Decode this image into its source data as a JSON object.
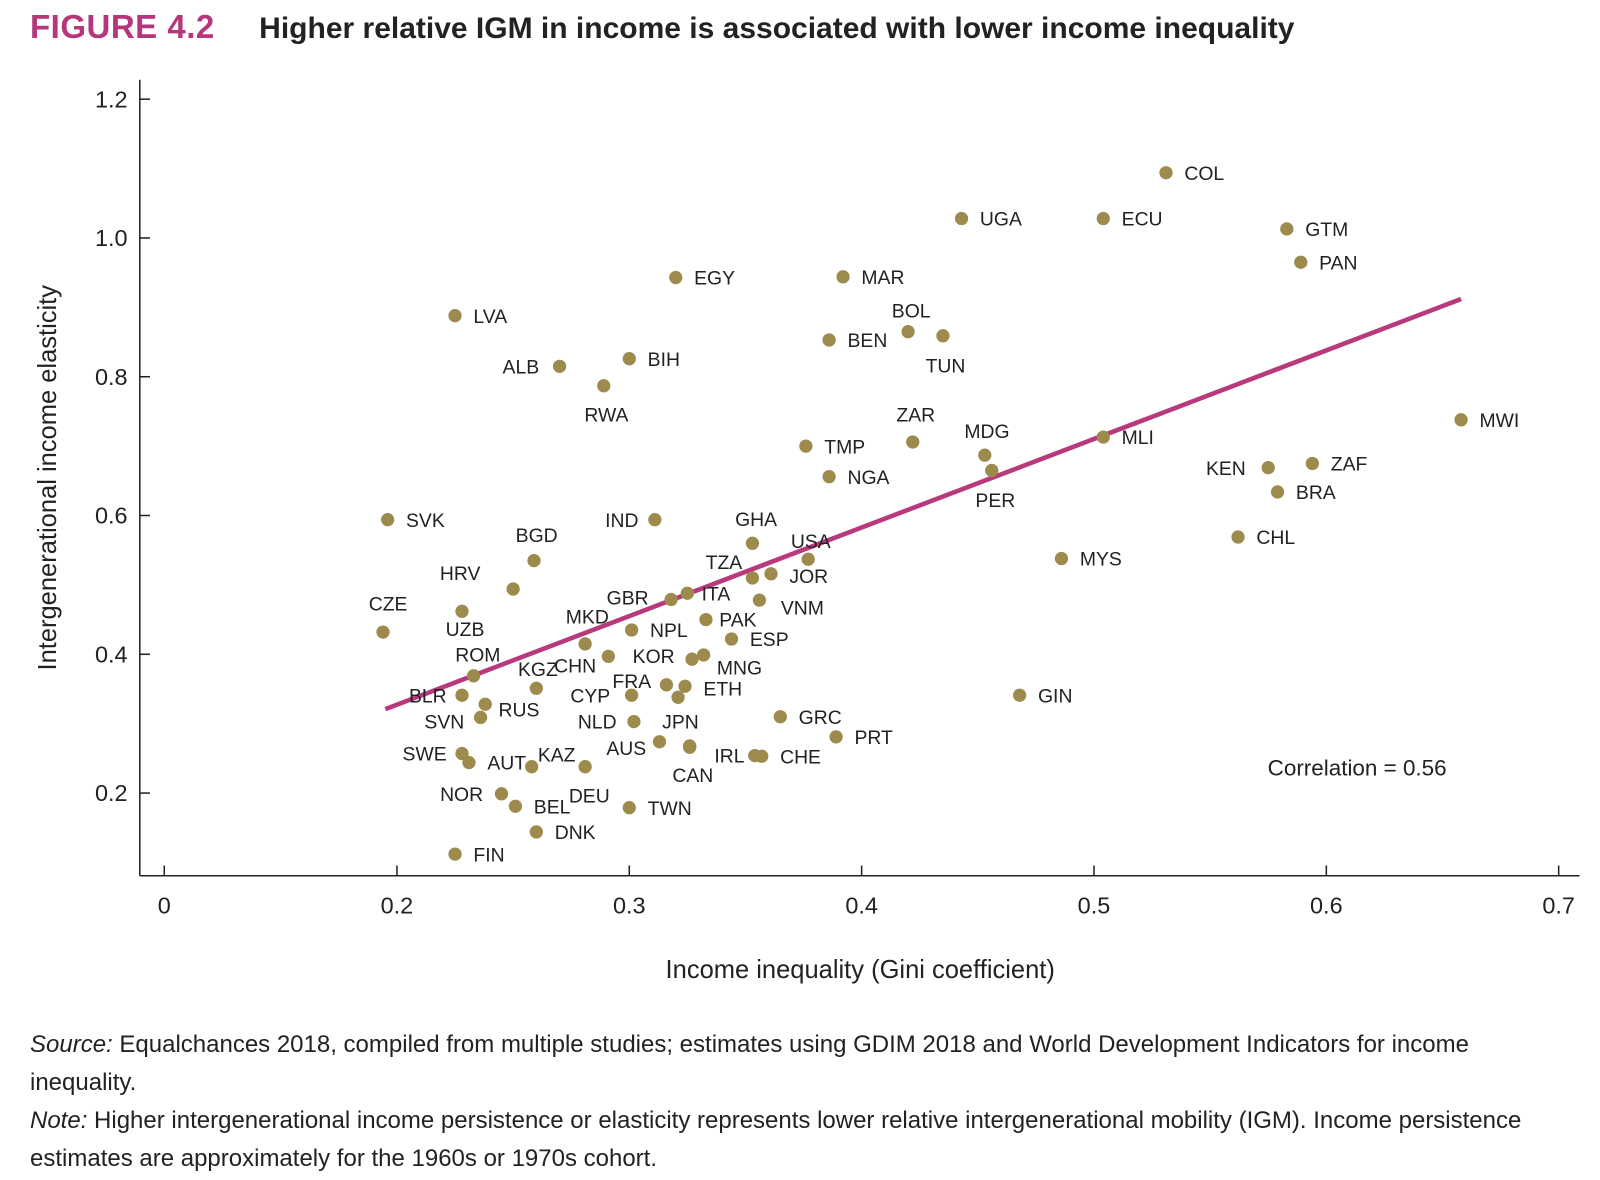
{
  "header": {
    "figure_number": "FIGURE 4.2",
    "title": "Higher relative IGM in income is associated with lower income inequality"
  },
  "notes": {
    "source_label": "Source:",
    "source_text": " Equalchances 2018, compiled from multiple studies; estimates using GDIM 2018 and World Development Indicators for income inequality.",
    "note_label": "Note:",
    "note_text": " Higher intergenerational income persistence or elasticity represents lower relative intergenerational mobility (IGM). Income persistence estimates are approximately for the 1960s or 1970s cohort."
  },
  "colors": {
    "title_accent": "#B5367A",
    "points": "#9C8B4C",
    "trend_line": "#B83A7C"
  },
  "chart_data": {
    "type": "scatter",
    "title": "",
    "xlabel": "Income inequality (Gini coefficient)",
    "ylabel": "Intergenerational income elasticity",
    "xlim": [
      0,
      0.7
    ],
    "x_axis_break": "axis jumps from 0 to 0.2",
    "ylim": [
      0.08,
      1.22
    ],
    "x_ticks": [
      {
        "v": 0,
        "label": "0"
      },
      {
        "v": 0.2,
        "label": "0.2"
      },
      {
        "v": 0.3,
        "label": "0.3"
      },
      {
        "v": 0.4,
        "label": "0.4"
      },
      {
        "v": 0.5,
        "label": "0.5"
      },
      {
        "v": 0.6,
        "label": "0.6"
      },
      {
        "v": 0.7,
        "label": "0.7"
      }
    ],
    "y_ticks": [
      {
        "v": 0.2,
        "label": "0.2"
      },
      {
        "v": 0.4,
        "label": "0.4"
      },
      {
        "v": 0.6,
        "label": "0.6"
      },
      {
        "v": 0.8,
        "label": "0.8"
      },
      {
        "v": 1.0,
        "label": "1.0"
      },
      {
        "v": 1.2,
        "label": "1.2"
      }
    ],
    "grid": false,
    "annotation": "Correlation = 0.56",
    "trend_line": {
      "x": [
        0.195,
        0.658
      ],
      "y": [
        0.321,
        0.912
      ]
    },
    "points": [
      {
        "label": "COL",
        "x": 0.531,
        "y": 1.094
      },
      {
        "label": "UGA",
        "x": 0.443,
        "y": 1.028
      },
      {
        "label": "ECU",
        "x": 0.504,
        "y": 1.028
      },
      {
        "label": "GTM",
        "x": 0.583,
        "y": 1.013
      },
      {
        "label": "PAN",
        "x": 0.589,
        "y": 0.965
      },
      {
        "label": "EGY",
        "x": 0.32,
        "y": 0.943
      },
      {
        "label": "MAR",
        "x": 0.392,
        "y": 0.944
      },
      {
        "label": "LVA",
        "x": 0.225,
        "y": 0.888
      },
      {
        "label": "BOL",
        "x": 0.42,
        "y": 0.865
      },
      {
        "label": "TUN",
        "x": 0.435,
        "y": 0.859
      },
      {
        "label": "BEN",
        "x": 0.386,
        "y": 0.853
      },
      {
        "label": "BIH",
        "x": 0.3,
        "y": 0.826
      },
      {
        "label": "ALB",
        "x": 0.27,
        "y": 0.815
      },
      {
        "label": "RWA",
        "x": 0.289,
        "y": 0.787
      },
      {
        "label": "MWI",
        "x": 0.658,
        "y": 0.738
      },
      {
        "label": "MLI",
        "x": 0.504,
        "y": 0.713
      },
      {
        "label": "ZAR",
        "x": 0.422,
        "y": 0.706
      },
      {
        "label": "TMP",
        "x": 0.376,
        "y": 0.7
      },
      {
        "label": "MDG",
        "x": 0.453,
        "y": 0.687
      },
      {
        "label": "ZAF",
        "x": 0.594,
        "y": 0.675
      },
      {
        "label": "KEN",
        "x": 0.575,
        "y": 0.669
      },
      {
        "label": "PER",
        "x": 0.456,
        "y": 0.665
      },
      {
        "label": "NGA",
        "x": 0.386,
        "y": 0.656
      },
      {
        "label": "BRA",
        "x": 0.579,
        "y": 0.634
      },
      {
        "label": "SVK",
        "x": 0.196,
        "y": 0.594
      },
      {
        "label": "IND",
        "x": 0.311,
        "y": 0.594
      },
      {
        "label": "CHL",
        "x": 0.562,
        "y": 0.569
      },
      {
        "label": "GHA",
        "x": 0.353,
        "y": 0.56
      },
      {
        "label": "MYS",
        "x": 0.486,
        "y": 0.538
      },
      {
        "label": "USA",
        "x": 0.377,
        "y": 0.537
      },
      {
        "label": "BGD",
        "x": 0.259,
        "y": 0.535
      },
      {
        "label": "JOR",
        "x": 0.361,
        "y": 0.516
      },
      {
        "label": "TZA",
        "x": 0.353,
        "y": 0.51
      },
      {
        "label": "HRV",
        "x": 0.25,
        "y": 0.494
      },
      {
        "label": "ITA",
        "x": 0.325,
        "y": 0.488
      },
      {
        "label": "GBR",
        "x": 0.318,
        "y": 0.479
      },
      {
        "label": "VNM",
        "x": 0.356,
        "y": 0.478
      },
      {
        "label": "UZB",
        "x": 0.228,
        "y": 0.462
      },
      {
        "label": "CZE",
        "x": 0.194,
        "y": 0.432
      },
      {
        "label": "PAK",
        "x": 0.333,
        "y": 0.45
      },
      {
        "label": "NPL",
        "x": 0.301,
        "y": 0.435
      },
      {
        "label": "ESP",
        "x": 0.344,
        "y": 0.422
      },
      {
        "label": "MKD",
        "x": 0.281,
        "y": 0.415
      },
      {
        "label": "CHN",
        "x": 0.291,
        "y": 0.397
      },
      {
        "label": "MNG",
        "x": 0.332,
        "y": 0.399
      },
      {
        "label": "KOR",
        "x": 0.327,
        "y": 0.393
      },
      {
        "label": "ROM",
        "x": 0.233,
        "y": 0.369
      },
      {
        "label": "FRA",
        "x": 0.316,
        "y": 0.356
      },
      {
        "label": "ETH",
        "x": 0.324,
        "y": 0.354
      },
      {
        "label": "",
        "x": 0.321,
        "y": 0.338
      },
      {
        "label": "KGZ",
        "x": 0.26,
        "y": 0.351
      },
      {
        "label": "CYP",
        "x": 0.301,
        "y": 0.341
      },
      {
        "label": "BLR",
        "x": 0.228,
        "y": 0.341
      },
      {
        "label": "GIN",
        "x": 0.468,
        "y": 0.341
      },
      {
        "label": "RUS",
        "x": 0.238,
        "y": 0.328
      },
      {
        "label": "SVN",
        "x": 0.236,
        "y": 0.309
      },
      {
        "label": "GRC",
        "x": 0.365,
        "y": 0.31
      },
      {
        "label": "NLD",
        "x": 0.302,
        "y": 0.303
      },
      {
        "label": "PRT",
        "x": 0.389,
        "y": 0.281
      },
      {
        "label": "AUS",
        "x": 0.313,
        "y": 0.274
      },
      {
        "label": "JPN",
        "x": 0.326,
        "y": 0.268
      },
      {
        "label": "CAN",
        "x": 0.326,
        "y": 0.266
      },
      {
        "label": "SWE",
        "x": 0.228,
        "y": 0.257
      },
      {
        "label": "IRL",
        "x": 0.354,
        "y": 0.254
      },
      {
        "label": "CHE",
        "x": 0.357,
        "y": 0.253
      },
      {
        "label": "AUT",
        "x": 0.231,
        "y": 0.244
      },
      {
        "label": "KAZ",
        "x": 0.258,
        "y": 0.238
      },
      {
        "label": "DEU",
        "x": 0.281,
        "y": 0.238
      },
      {
        "label": "NOR",
        "x": 0.245,
        "y": 0.199
      },
      {
        "label": "BEL",
        "x": 0.251,
        "y": 0.181
      },
      {
        "label": "TWN",
        "x": 0.3,
        "y": 0.179
      },
      {
        "label": "DNK",
        "x": 0.26,
        "y": 0.144
      },
      {
        "label": "FIN",
        "x": 0.225,
        "y": 0.112
      }
    ]
  }
}
